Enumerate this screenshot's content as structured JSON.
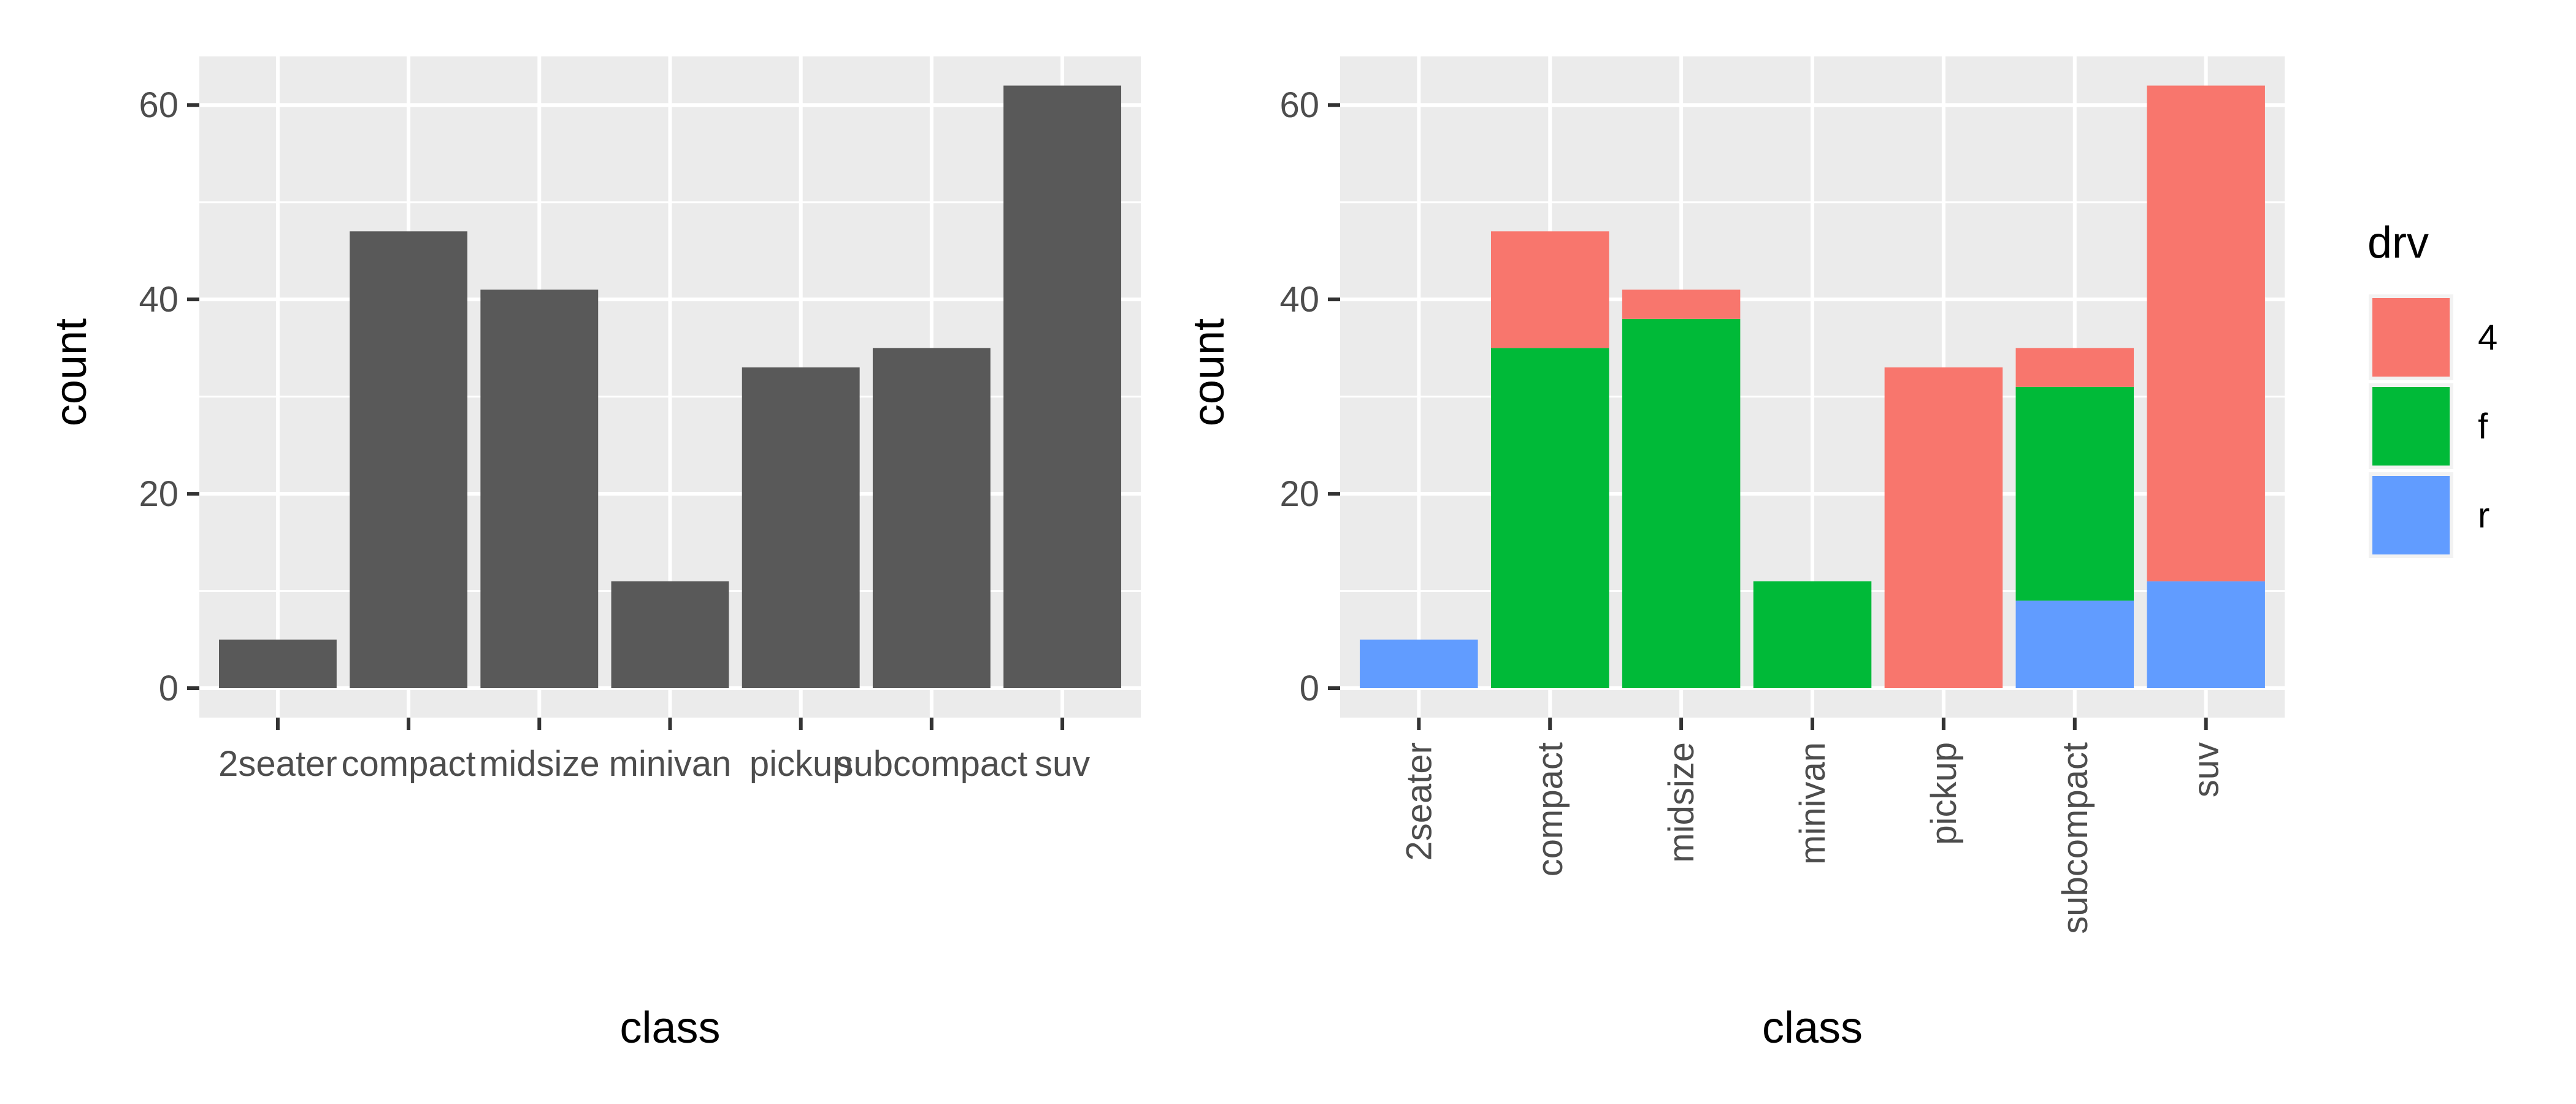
{
  "chart_data": [
    {
      "type": "bar",
      "categories": [
        "2seater",
        "compact",
        "midsize",
        "minivan",
        "pickup",
        "subcompact",
        "suv"
      ],
      "values": [
        5,
        47,
        41,
        11,
        33,
        35,
        62
      ],
      "xlabel": "class",
      "ylabel": "count",
      "ylim": [
        0,
        65
      ],
      "yticks": [
        0,
        20,
        40,
        60
      ],
      "bar_color": "#595959",
      "grid": true,
      "x_tick_rotation": 0
    },
    {
      "type": "bar",
      "stacked": true,
      "categories": [
        "2seater",
        "compact",
        "midsize",
        "minivan",
        "pickup",
        "subcompact",
        "suv"
      ],
      "series": [
        {
          "name": "4",
          "color": "#F8766D",
          "values": [
            0,
            12,
            3,
            0,
            33,
            4,
            51
          ]
        },
        {
          "name": "f",
          "color": "#00BA38",
          "values": [
            0,
            35,
            38,
            11,
            0,
            22,
            0
          ]
        },
        {
          "name": "r",
          "color": "#619CFF",
          "values": [
            5,
            0,
            0,
            0,
            0,
            9,
            11
          ]
        }
      ],
      "xlabel": "class",
      "ylabel": "count",
      "ylim": [
        0,
        65
      ],
      "yticks": [
        0,
        20,
        40,
        60
      ],
      "grid": true,
      "x_tick_rotation": -90,
      "legend": {
        "title": "drv",
        "placement": "right",
        "entries": [
          "4",
          "f",
          "r"
        ]
      }
    }
  ]
}
